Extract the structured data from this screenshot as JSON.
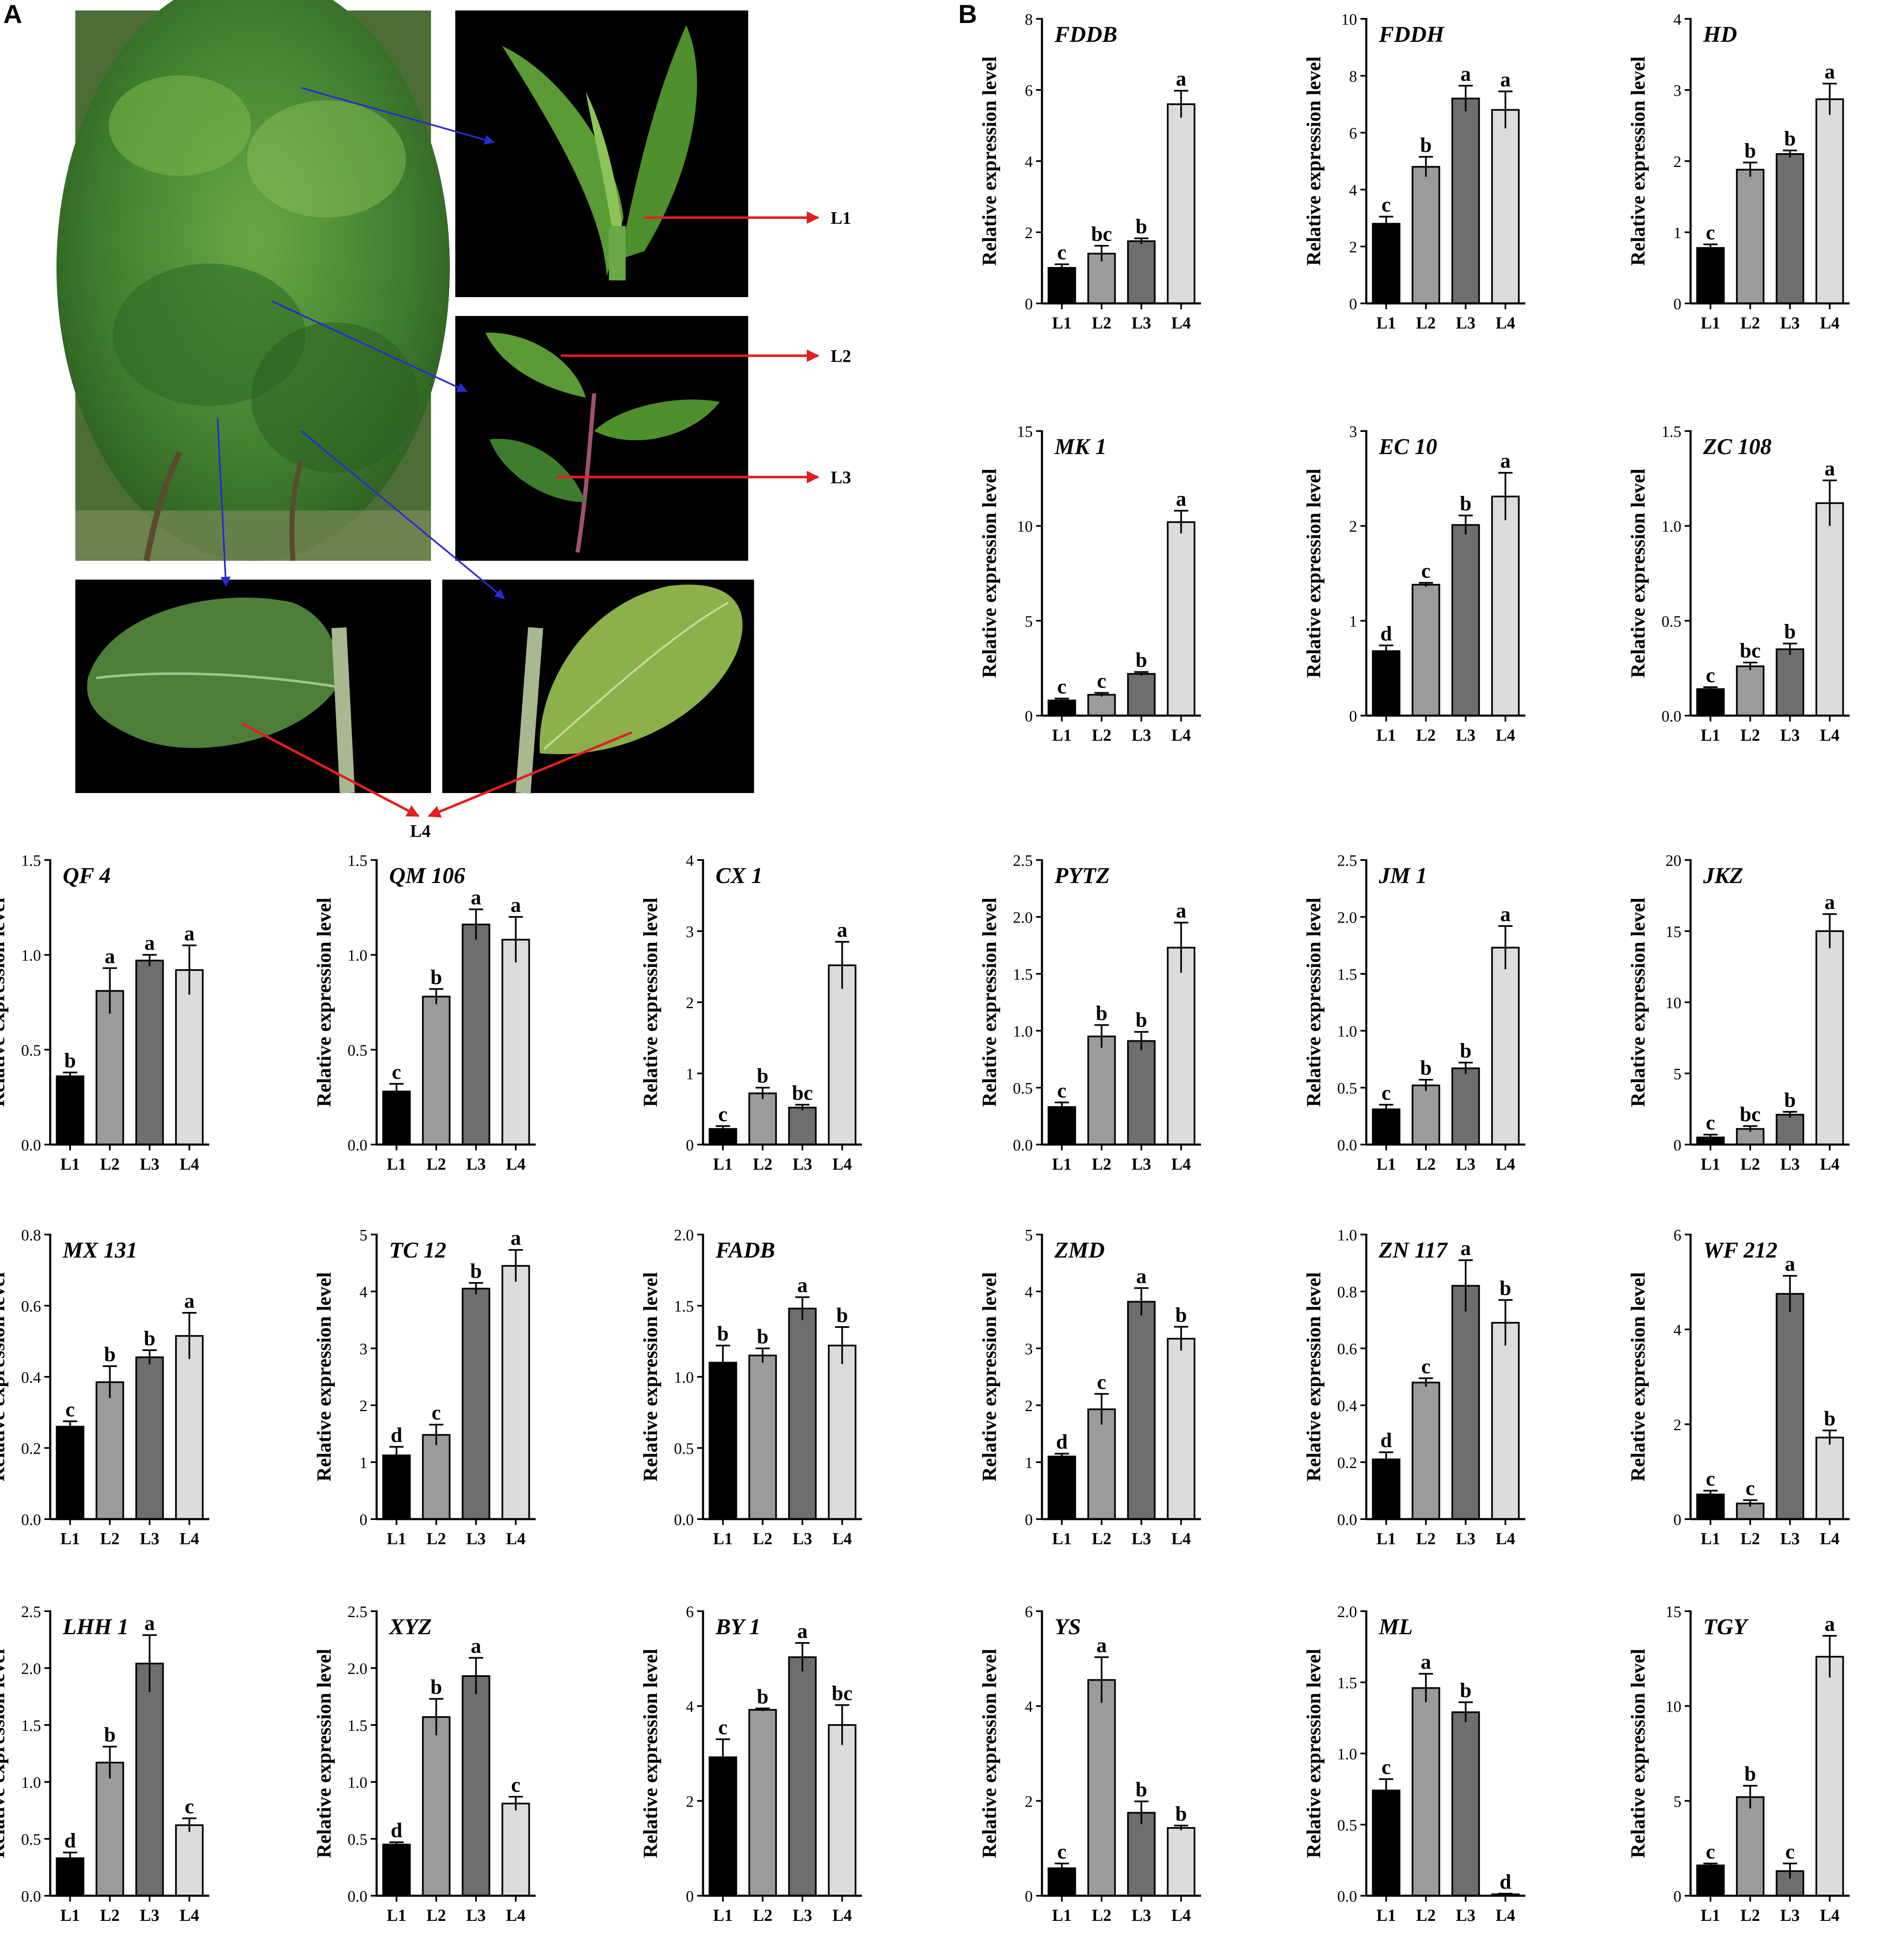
{
  "panel_labels": {
    "a": "A",
    "b": "B"
  },
  "photo": {
    "leaf_labels": [
      "L1",
      "L2",
      "L3",
      "L4"
    ],
    "colors": {
      "background": "#000000",
      "leaf": "#4f8f2c",
      "leaf_light": "#7cb84a",
      "bush": "#3d7a2a",
      "red_arrow": "#e02020",
      "blue_arrow": "#2a2ad0"
    }
  },
  "bar_colors": [
    "#000000",
    "#9b9b9b",
    "#6e6e6e",
    "#dcdcdc"
  ],
  "common": {
    "ylabel": "Relative expression level",
    "categories": [
      "L1",
      "L2",
      "L3",
      "L4"
    ]
  },
  "chart_data": [
    {
      "type": "bar",
      "title": "FDDB",
      "categories": [
        "L1",
        "L2",
        "L3",
        "L4"
      ],
      "values": [
        1.0,
        1.4,
        1.75,
        5.6
      ],
      "errors": [
        0.1,
        0.22,
        0.08,
        0.38
      ],
      "letters": [
        "c",
        "bc",
        "b",
        "a"
      ],
      "ylabel": "Relative expression level",
      "ylim": [
        0,
        8
      ],
      "yticks": [
        "0",
        "2",
        "4",
        "6",
        "8"
      ]
    },
    {
      "type": "bar",
      "title": "FDDH",
      "categories": [
        "L1",
        "L2",
        "L3",
        "L4"
      ],
      "values": [
        2.8,
        4.8,
        7.2,
        6.8
      ],
      "errors": [
        0.25,
        0.35,
        0.45,
        0.65
      ],
      "letters": [
        "c",
        "b",
        "a",
        "a"
      ],
      "ylabel": "Relative expression level",
      "ylim": [
        0,
        10
      ],
      "yticks": [
        "0",
        "2",
        "4",
        "6",
        "8",
        "10"
      ]
    },
    {
      "type": "bar",
      "title": "HD",
      "categories": [
        "L1",
        "L2",
        "L3",
        "L4"
      ],
      "values": [
        0.78,
        1.88,
        2.1,
        2.87
      ],
      "errors": [
        0.05,
        0.1,
        0.05,
        0.22
      ],
      "letters": [
        "c",
        "b",
        "b",
        "a"
      ],
      "ylabel": "Relative expression level",
      "ylim": [
        0,
        4
      ],
      "yticks": [
        "0",
        "1",
        "2",
        "3",
        "4"
      ]
    },
    {
      "type": "bar",
      "title": "MK 1",
      "categories": [
        "L1",
        "L2",
        "L3",
        "L4"
      ],
      "values": [
        0.8,
        1.1,
        2.2,
        10.2
      ],
      "errors": [
        0.1,
        0.1,
        0.1,
        0.6
      ],
      "letters": [
        "c",
        "c",
        "b",
        "a"
      ],
      "ylabel": "Relative expression level",
      "ylim": [
        0,
        15
      ],
      "yticks": [
        "0",
        "5",
        "10",
        "15"
      ]
    },
    {
      "type": "bar",
      "title": "EC 10",
      "categories": [
        "L1",
        "L2",
        "L3",
        "L4"
      ],
      "values": [
        0.68,
        1.38,
        2.01,
        2.31
      ],
      "errors": [
        0.06,
        0.02,
        0.1,
        0.25
      ],
      "letters": [
        "d",
        "c",
        "b",
        "a"
      ],
      "ylabel": "Relative expression level",
      "ylim": [
        0,
        3
      ],
      "yticks": [
        "0",
        "1",
        "2",
        "3"
      ]
    },
    {
      "type": "bar",
      "title": "ZC 108",
      "categories": [
        "L1",
        "L2",
        "L3",
        "L4"
      ],
      "values": [
        0.14,
        0.26,
        0.35,
        1.12
      ],
      "errors": [
        0.01,
        0.02,
        0.03,
        0.12
      ],
      "letters": [
        "c",
        "bc",
        "b",
        "a"
      ],
      "ylabel": "Relative expression level",
      "ylim": [
        0,
        1.5
      ],
      "yticks": [
        "0.0",
        "0.5",
        "1.0",
        "1.5"
      ]
    },
    {
      "type": "bar",
      "title": "QF 4",
      "categories": [
        "L1",
        "L2",
        "L3",
        "L4"
      ],
      "values": [
        0.36,
        0.81,
        0.97,
        0.92
      ],
      "errors": [
        0.02,
        0.12,
        0.03,
        0.13
      ],
      "letters": [
        "b",
        "a",
        "a",
        "a"
      ],
      "ylabel": "Relative expression level",
      "ylim": [
        0,
        1.5
      ],
      "yticks": [
        "0.0",
        "0.5",
        "1.0",
        "1.5"
      ]
    },
    {
      "type": "bar",
      "title": "QM 106",
      "categories": [
        "L1",
        "L2",
        "L3",
        "L4"
      ],
      "values": [
        0.28,
        0.78,
        1.16,
        1.08
      ],
      "errors": [
        0.04,
        0.04,
        0.08,
        0.12
      ],
      "letters": [
        "c",
        "b",
        "a",
        "a"
      ],
      "ylabel": "Relative expression level",
      "ylim": [
        0,
        1.5
      ],
      "yticks": [
        "0.0",
        "0.5",
        "1.0",
        "1.5"
      ]
    },
    {
      "type": "bar",
      "title": "CX 1",
      "categories": [
        "L1",
        "L2",
        "L3",
        "L4"
      ],
      "values": [
        0.22,
        0.72,
        0.52,
        2.52
      ],
      "errors": [
        0.04,
        0.08,
        0.04,
        0.33
      ],
      "letters": [
        "c",
        "b",
        "bc",
        "a"
      ],
      "ylabel": "Relative expression level",
      "ylim": [
        0,
        4
      ],
      "yticks": [
        "0",
        "1",
        "2",
        "3",
        "4"
      ]
    },
    {
      "type": "bar",
      "title": "PYTZ",
      "categories": [
        "L1",
        "L2",
        "L3",
        "L4"
      ],
      "values": [
        0.33,
        0.95,
        0.91,
        1.73
      ],
      "errors": [
        0.04,
        0.1,
        0.08,
        0.22
      ],
      "letters": [
        "c",
        "b",
        "b",
        "a"
      ],
      "ylabel": "Relative expression level",
      "ylim": [
        0,
        2.5
      ],
      "yticks": [
        "0.0",
        "0.5",
        "1.0",
        "1.5",
        "2.0",
        "2.5"
      ]
    },
    {
      "type": "bar",
      "title": "JM 1",
      "categories": [
        "L1",
        "L2",
        "L3",
        "L4"
      ],
      "values": [
        0.31,
        0.52,
        0.67,
        1.73
      ],
      "errors": [
        0.04,
        0.05,
        0.05,
        0.19
      ],
      "letters": [
        "c",
        "b",
        "b",
        "a"
      ],
      "ylabel": "Relative expression level",
      "ylim": [
        0,
        2.5
      ],
      "yticks": [
        "0.0",
        "0.5",
        "1.0",
        "1.5",
        "2.0",
        "2.5"
      ]
    },
    {
      "type": "bar",
      "title": "JKZ",
      "categories": [
        "L1",
        "L2",
        "L3",
        "L4"
      ],
      "values": [
        0.5,
        1.1,
        2.1,
        15.0
      ],
      "errors": [
        0.2,
        0.2,
        0.2,
        1.2
      ],
      "letters": [
        "c",
        "bc",
        "b",
        "a"
      ],
      "ylabel": "Relative expression level",
      "ylim": [
        0,
        20
      ],
      "yticks": [
        "0",
        "5",
        "10",
        "15",
        "20"
      ]
    },
    {
      "type": "bar",
      "title": "MX 131",
      "categories": [
        "L1",
        "L2",
        "L3",
        "L4"
      ],
      "values": [
        0.26,
        0.385,
        0.455,
        0.515
      ],
      "errors": [
        0.015,
        0.045,
        0.02,
        0.065
      ],
      "letters": [
        "c",
        "b",
        "b",
        "a"
      ],
      "ylabel": "Relative expression level",
      "ylim": [
        0,
        0.8
      ],
      "yticks": [
        "0.0",
        "0.2",
        "0.4",
        "0.6",
        "0.8"
      ]
    },
    {
      "type": "bar",
      "title": "TC 12",
      "categories": [
        "L1",
        "L2",
        "L3",
        "L4"
      ],
      "values": [
        1.12,
        1.48,
        4.05,
        4.45
      ],
      "errors": [
        0.15,
        0.18,
        0.1,
        0.28
      ],
      "letters": [
        "d",
        "c",
        "b",
        "a"
      ],
      "ylabel": "Relative expression level",
      "ylim": [
        0,
        5
      ],
      "yticks": [
        "0",
        "1",
        "2",
        "3",
        "4",
        "5"
      ]
    },
    {
      "type": "bar",
      "title": "FADB",
      "categories": [
        "L1",
        "L2",
        "L3",
        "L4"
      ],
      "values": [
        1.1,
        1.15,
        1.48,
        1.22
      ],
      "errors": [
        0.12,
        0.05,
        0.08,
        0.13
      ],
      "letters": [
        "b",
        "b",
        "a",
        "b"
      ],
      "ylabel": "Relative expression level",
      "ylim": [
        0,
        2.0
      ],
      "yticks": [
        "0.0",
        "0.5",
        "1.0",
        "1.5",
        "2.0"
      ]
    },
    {
      "type": "bar",
      "title": "ZMD",
      "categories": [
        "L1",
        "L2",
        "L3",
        "L4"
      ],
      "values": [
        1.1,
        1.93,
        3.82,
        3.17
      ],
      "errors": [
        0.05,
        0.27,
        0.24,
        0.21
      ],
      "letters": [
        "d",
        "c",
        "a",
        "b"
      ],
      "ylabel": "Relative expression level",
      "ylim": [
        0,
        5
      ],
      "yticks": [
        "0",
        "1",
        "2",
        "3",
        "4",
        "5"
      ]
    },
    {
      "type": "bar",
      "title": "ZN 117",
      "categories": [
        "L1",
        "L2",
        "L3",
        "L4"
      ],
      "values": [
        0.21,
        0.48,
        0.82,
        0.69
      ],
      "errors": [
        0.025,
        0.015,
        0.09,
        0.08
      ],
      "letters": [
        "d",
        "c",
        "a",
        "b"
      ],
      "ylabel": "Relative expression level",
      "ylim": [
        0,
        1.0
      ],
      "yticks": [
        "0.0",
        "0.2",
        "0.4",
        "0.6",
        "0.8",
        "1.0"
      ]
    },
    {
      "type": "bar",
      "title": "WF 212",
      "categories": [
        "L1",
        "L2",
        "L3",
        "L4"
      ],
      "values": [
        0.52,
        0.33,
        4.75,
        1.72
      ],
      "errors": [
        0.08,
        0.07,
        0.38,
        0.15
      ],
      "letters": [
        "c",
        "c",
        "a",
        "b"
      ],
      "ylabel": "Relative expression level",
      "ylim": [
        0,
        6
      ],
      "yticks": [
        "0",
        "2",
        "4",
        "6"
      ]
    },
    {
      "type": "bar",
      "title": "LHH 1",
      "categories": [
        "L1",
        "L2",
        "L3",
        "L4"
      ],
      "values": [
        0.33,
        1.17,
        2.04,
        0.62
      ],
      "errors": [
        0.05,
        0.14,
        0.25,
        0.06
      ],
      "letters": [
        "d",
        "b",
        "a",
        "c"
      ],
      "ylabel": "Relative expression level",
      "ylim": [
        0,
        2.5
      ],
      "yticks": [
        "0.0",
        "0.5",
        "1.0",
        "1.5",
        "2.0",
        "2.5"
      ]
    },
    {
      "type": "bar",
      "title": "XYZ",
      "categories": [
        "L1",
        "L2",
        "L3",
        "L4"
      ],
      "values": [
        0.45,
        1.57,
        1.93,
        0.81
      ],
      "errors": [
        0.02,
        0.16,
        0.16,
        0.06
      ],
      "letters": [
        "d",
        "b",
        "a",
        "c"
      ],
      "ylabel": "Relative expression level",
      "ylim": [
        0,
        2.5
      ],
      "yticks": [
        "0.0",
        "0.5",
        "1.0",
        "1.5",
        "2.0",
        "2.5"
      ]
    },
    {
      "type": "bar",
      "title": "BY 1",
      "categories": [
        "L1",
        "L2",
        "L3",
        "L4"
      ],
      "values": [
        2.92,
        3.92,
        5.03,
        3.6
      ],
      "errors": [
        0.38,
        0.03,
        0.3,
        0.42
      ],
      "letters": [
        "c",
        "b",
        "a",
        "bc"
      ],
      "ylabel": "Relative expression level",
      "ylim": [
        0,
        6
      ],
      "yticks": [
        "0",
        "2",
        "4",
        "6"
      ]
    },
    {
      "type": "bar",
      "title": "YS",
      "categories": [
        "L1",
        "L2",
        "L3",
        "L4"
      ],
      "values": [
        0.58,
        4.55,
        1.75,
        1.43
      ],
      "errors": [
        0.1,
        0.48,
        0.24,
        0.05
      ],
      "letters": [
        "c",
        "a",
        "b",
        "b"
      ],
      "ylabel": "Relative expression level",
      "ylim": [
        0,
        6
      ],
      "yticks": [
        "0",
        "2",
        "4",
        "6"
      ]
    },
    {
      "type": "bar",
      "title": "ML",
      "categories": [
        "L1",
        "L2",
        "L3",
        "L4"
      ],
      "values": [
        0.74,
        1.46,
        1.29,
        0.01
      ],
      "errors": [
        0.08,
        0.1,
        0.07,
        0.005
      ],
      "letters": [
        "c",
        "a",
        "b",
        "d"
      ],
      "ylabel": "Relative expression level",
      "ylim": [
        0,
        2.0
      ],
      "yticks": [
        "0.0",
        "0.5",
        "1.0",
        "1.5",
        "2.0"
      ]
    },
    {
      "type": "bar",
      "title": "TGY",
      "categories": [
        "L1",
        "L2",
        "L3",
        "L4"
      ],
      "values": [
        1.6,
        5.2,
        1.3,
        12.6
      ],
      "errors": [
        0.1,
        0.6,
        0.4,
        1.1
      ],
      "letters": [
        "c",
        "b",
        "c",
        "a"
      ],
      "ylabel": "Relative expression level",
      "ylim": [
        0,
        15
      ],
      "yticks": [
        "0",
        "5",
        "10",
        "15"
      ]
    }
  ]
}
